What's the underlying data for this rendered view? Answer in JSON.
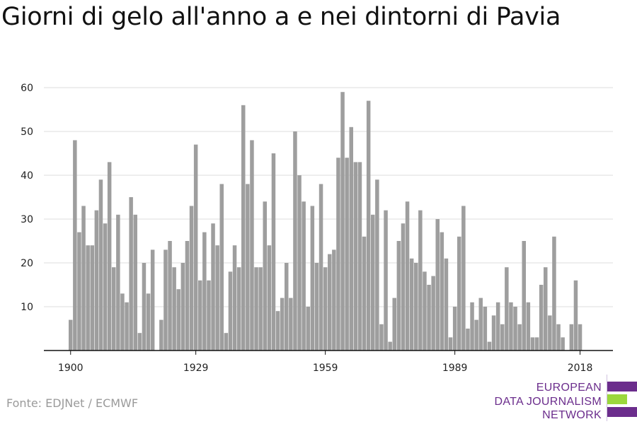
{
  "title": "Giorni di gelo all'anno a e nei dintorni di Pavia",
  "source": "Fonte: EDJNet / ECMWF",
  "logo": {
    "lines": [
      "EUROPEAN",
      "DATA JOURNALISM",
      "NETWORK"
    ],
    "text_color": "#6b2d8c",
    "bar_colors": [
      "#6b2d8c",
      "#9bd83c",
      "#6b2d8c"
    ]
  },
  "chart_data": {
    "type": "bar",
    "title": "",
    "xlabel": "",
    "ylabel": "",
    "x_start": 1900,
    "x_end": 2019,
    "xticks": [
      1900,
      1929,
      1959,
      1989,
      2018
    ],
    "yticks": [
      10,
      20,
      30,
      40,
      50,
      60
    ],
    "ylim": [
      0,
      62
    ],
    "grid": true,
    "bar_color": "#9e9e9e",
    "values": [
      7,
      48,
      27,
      33,
      24,
      24,
      32,
      39,
      29,
      43,
      19,
      31,
      13,
      11,
      35,
      31,
      4,
      20,
      13,
      23,
      0,
      7,
      23,
      25,
      19,
      14,
      20,
      25,
      33,
      47,
      16,
      27,
      16,
      29,
      24,
      38,
      4,
      18,
      24,
      19,
      56,
      38,
      48,
      19,
      19,
      34,
      24,
      45,
      9,
      12,
      20,
      12,
      50,
      40,
      34,
      10,
      33,
      20,
      38,
      19,
      22,
      23,
      44,
      59,
      44,
      51,
      43,
      43,
      26,
      57,
      31,
      39,
      6,
      32,
      2,
      12,
      25,
      29,
      34,
      21,
      20,
      32,
      18,
      15,
      17,
      30,
      27,
      21,
      3,
      10,
      26,
      33,
      5,
      11,
      7,
      12,
      10,
      2,
      8,
      11,
      6,
      19,
      11,
      10,
      6,
      25,
      11,
      3,
      3,
      15,
      19,
      8,
      26,
      6,
      3,
      0,
      6,
      16,
      6,
      0
    ]
  }
}
